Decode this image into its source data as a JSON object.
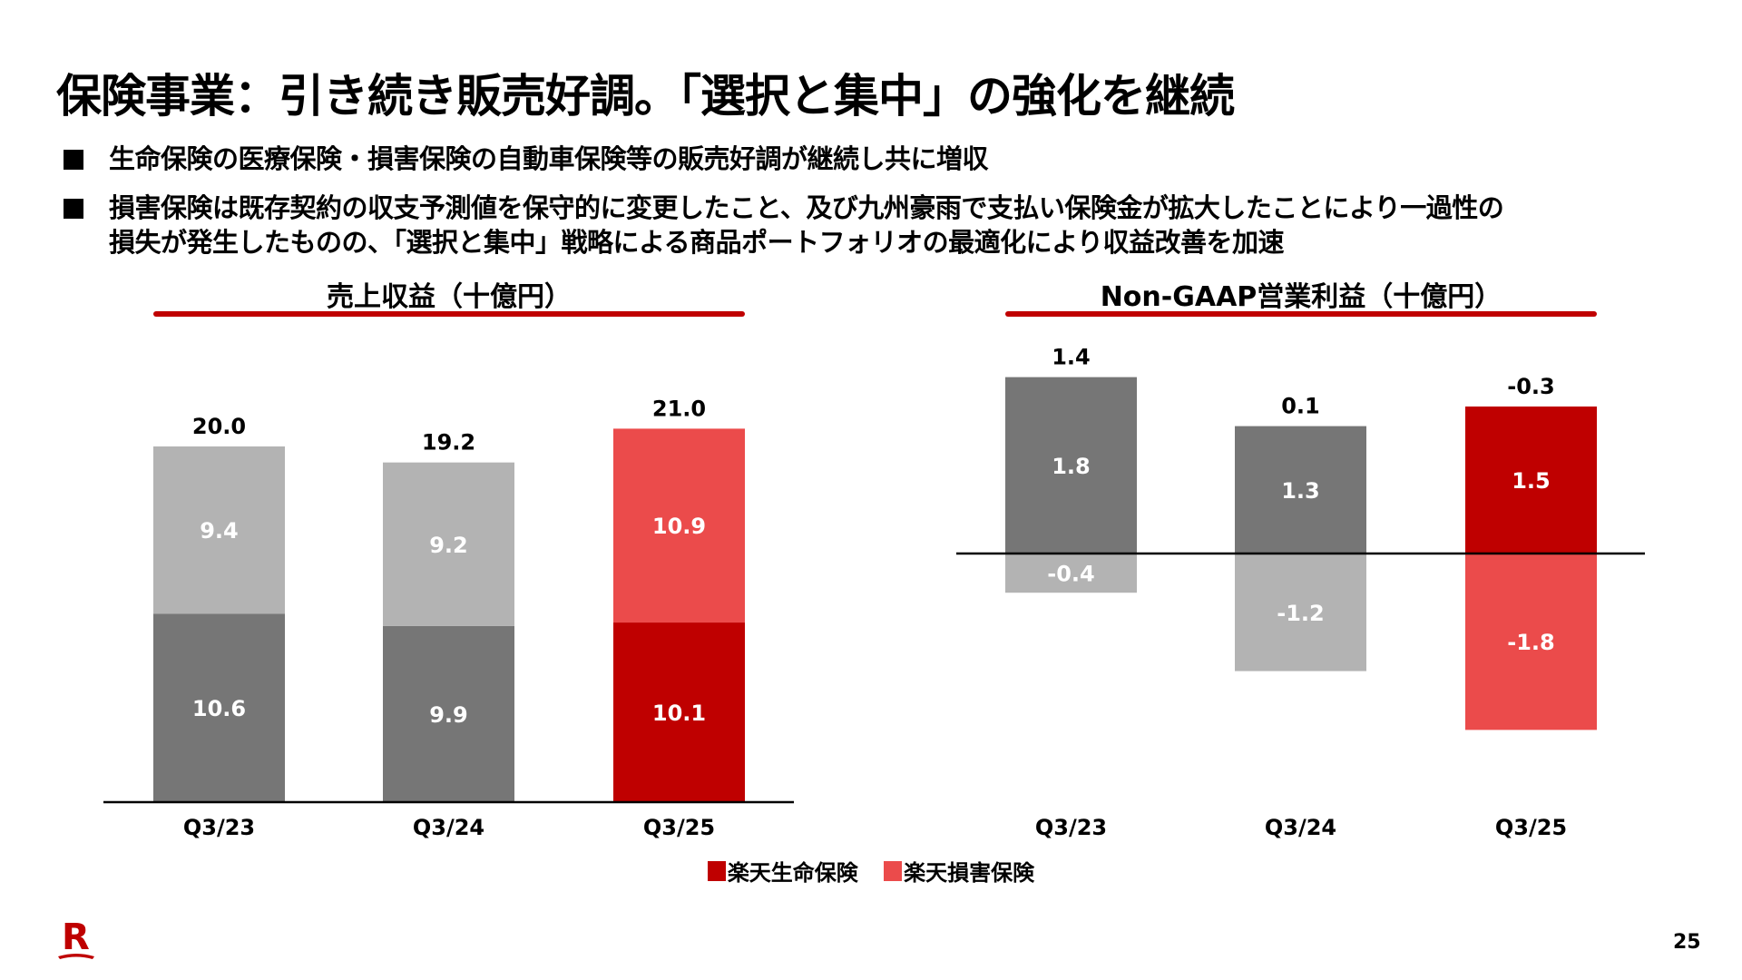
{
  "title": "保険事業：引き続き販売好調。「選択と集中」の強化を継続",
  "bullets": [
    "生命保険の医療保険・損害保険の自動車保険等の販売好調が継続し共に増収",
    "損害保険は既存契約の収支予測値を保守的に変更したこと、及び九州豪雨で支払い保険金が拡大したことにより一過性の",
    "損失が発生したものの、「選択と集中」戦略による商品ポートフォリオの最適化により収益改善を加速"
  ],
  "legend": [
    "楽天生命保険",
    "楽天損害保険"
  ],
  "colors": {
    "life_prev": "#767676",
    "nonlife_prev": "#b3b3b3",
    "life": "#bf0000",
    "nonlife": "#eb4b4b",
    "accent": "#c00000"
  },
  "page_number": "25",
  "logo_text": "R",
  "chart_data": [
    {
      "type": "bar",
      "stacked": true,
      "title": "売上収益（十億円）",
      "categories": [
        "Q3/23",
        "Q3/24",
        "Q3/25"
      ],
      "series": [
        {
          "name": "楽天生命保険",
          "values": [
            10.6,
            9.9,
            10.1
          ]
        },
        {
          "name": "楽天損害保険",
          "values": [
            9.4,
            9.2,
            10.9
          ]
        }
      ],
      "totals": [
        "20.0",
        "19.2",
        "21.0"
      ],
      "labels": [
        [
          "10.6",
          "9.9",
          "10.1"
        ],
        [
          "9.4",
          "9.2",
          "10.9"
        ]
      ],
      "ylim": [
        0,
        22
      ]
    },
    {
      "type": "bar",
      "stacked": true,
      "title": "Non-GAAP営業利益（十億円）",
      "categories": [
        "Q3/23",
        "Q3/24",
        "Q3/25"
      ],
      "series": [
        {
          "name": "楽天生命保険",
          "values": [
            1.8,
            1.3,
            1.5
          ]
        },
        {
          "name": "楽天損害保険",
          "values": [
            -0.4,
            -1.2,
            -1.8
          ]
        }
      ],
      "totals": [
        "1.4",
        "0.1",
        "-0.3"
      ],
      "labels": [
        [
          "1.8",
          "1.3",
          "1.5"
        ],
        [
          "-0.4",
          "-1.2",
          "-1.8"
        ]
      ],
      "ylim": [
        -1.9,
        2.0
      ]
    }
  ]
}
